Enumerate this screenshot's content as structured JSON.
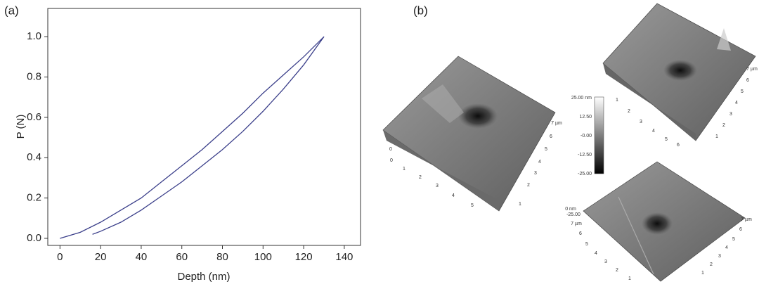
{
  "chart_data": {
    "type": "line",
    "xlabel": "Depth (nm)",
    "ylabel": "P (N)",
    "xlim": [
      -6,
      148
    ],
    "ylim": [
      -0.035,
      1.14
    ],
    "xticks": [
      0,
      20,
      40,
      60,
      80,
      100,
      120,
      140
    ],
    "yticks": [
      {
        "value": 0,
        "label": "0.0"
      },
      0.2,
      0.4,
      0.6,
      0.8,
      {
        "value": 1,
        "label": "1.0"
      }
    ],
    "series": [
      {
        "color": "#3b3f8a",
        "x": [
          0,
          10,
          20,
          30,
          40,
          50,
          60,
          70,
          80,
          90,
          100,
          110,
          120,
          130
        ],
        "values": [
          0,
          0.03,
          0.08,
          0.14,
          0.2,
          0.28,
          0.36,
          0.44,
          0.53,
          0.62,
          0.72,
          0.81,
          0.9,
          1.0
        ]
      },
      {
        "color": "#3b3f8a",
        "x": [
          130,
          120,
          110,
          100,
          90,
          80,
          70,
          60,
          50,
          40,
          30,
          20,
          16
        ],
        "values": [
          1.0,
          0.86,
          0.74,
          0.63,
          0.53,
          0.44,
          0.36,
          0.28,
          0.21,
          0.14,
          0.08,
          0.035,
          0.02
        ]
      }
    ]
  },
  "panel_a": {
    "label": "(a)"
  },
  "panel_b": {
    "label": "(b)",
    "colorbar": [
      "25.00 nm",
      "12.50",
      "-0.00",
      "-12.50",
      "-25.00"
    ],
    "images": [
      {
        "labels": [
          "0",
          "0",
          "1",
          "2",
          "3",
          "4",
          "5",
          "7 µm",
          "6",
          "5",
          "4",
          "3",
          "2",
          "1"
        ]
      },
      {
        "labels": [
          "1",
          "2",
          "3",
          "4",
          "5",
          "6",
          "7 µm",
          "6",
          "5",
          "4",
          "3",
          "2",
          "1"
        ]
      },
      {
        "labels": [
          "0 nm",
          "-25.00",
          "7 µm",
          "6",
          "5",
          "4",
          "3",
          "2",
          "1",
          "7 µm",
          "6",
          "5",
          "4",
          "3",
          "2",
          "1"
        ]
      }
    ]
  }
}
